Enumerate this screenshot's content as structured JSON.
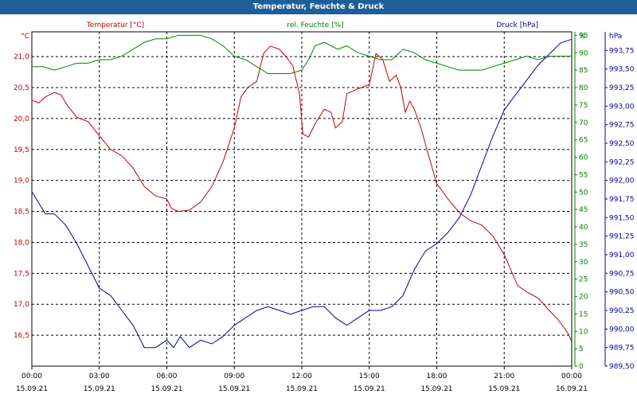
{
  "window_title": "Temperatur, Feuchte & Druck",
  "colors": {
    "titlebar": "#1f5f99",
    "temperature": "#c00000",
    "humidity": "#008000",
    "pressure": "#0000a0"
  },
  "chart_data": {
    "type": "line",
    "title": "Temperatur, Feuchte & Druck",
    "grid": true,
    "x_ticks": [
      {
        "time": "00:00",
        "date": "15.09.21"
      },
      {
        "time": "03:00",
        "date": "15.09.21"
      },
      {
        "time": "06:00",
        "date": "15.09.21"
      },
      {
        "time": "09:00",
        "date": "15.09.21"
      },
      {
        "time": "12:00",
        "date": "15.09.21"
      },
      {
        "time": "15:00",
        "date": "15.09.21"
      },
      {
        "time": "18:00",
        "date": "15.09.21"
      },
      {
        "time": "21:00",
        "date": "15.09.21"
      },
      {
        "time": "00:00",
        "date": "16.09.21"
      }
    ],
    "x_range_hours": [
      0,
      24
    ],
    "axes": {
      "temperature": {
        "unit_label": "°C",
        "range": [
          16.0,
          21.4
        ],
        "ticks": [
          "21,0",
          "20,5",
          "20,0",
          "19,5",
          "19,0",
          "18,5",
          "18,0",
          "17,5",
          "17,0",
          "16,5"
        ],
        "tick_values": [
          21.0,
          20.5,
          20.0,
          19.5,
          19.0,
          18.5,
          18.0,
          17.5,
          17.0,
          16.5
        ]
      },
      "humidity": {
        "unit_label": "%",
        "range": [
          0,
          96
        ],
        "ticks": [
          "95",
          "90",
          "85",
          "80",
          "75",
          "70",
          "65",
          "60",
          "55",
          "50",
          "45",
          "40",
          "35",
          "30",
          "25",
          "20",
          "15",
          "10",
          "5",
          "0"
        ],
        "tick_values": [
          95,
          90,
          85,
          80,
          75,
          70,
          65,
          60,
          55,
          50,
          45,
          40,
          35,
          30,
          25,
          20,
          15,
          10,
          5,
          0
        ]
      },
      "pressure": {
        "unit_label": "hPa",
        "range": [
          989.5,
          994.0
        ],
        "ticks": [
          "993,75",
          "993,50",
          "993,25",
          "993,00",
          "992,75",
          "992,50",
          "992,25",
          "992,00",
          "991,75",
          "991,50",
          "991,25",
          "991,00",
          "990,75",
          "990,50",
          "990,25",
          "990,00",
          "989,75",
          "989,50"
        ],
        "tick_values": [
          993.75,
          993.5,
          993.25,
          993.0,
          992.75,
          992.5,
          992.25,
          992.0,
          991.75,
          991.5,
          991.25,
          991.0,
          990.75,
          990.5,
          990.25,
          990.0,
          989.75,
          989.5
        ]
      }
    },
    "series": [
      {
        "name": "Temperatur [°C]",
        "axis": "temperature",
        "points": [
          [
            0,
            20.3
          ],
          [
            0.3,
            20.25
          ],
          [
            0.6,
            20.35
          ],
          [
            1.0,
            20.42
          ],
          [
            1.3,
            20.38
          ],
          [
            1.6,
            20.2
          ],
          [
            2.0,
            20.02
          ],
          [
            2.5,
            19.95
          ],
          [
            3.0,
            19.72
          ],
          [
            3.5,
            19.5
          ],
          [
            4.0,
            19.4
          ],
          [
            4.5,
            19.2
          ],
          [
            5.0,
            18.9
          ],
          [
            5.5,
            18.75
          ],
          [
            6.0,
            18.7
          ],
          [
            6.2,
            18.55
          ],
          [
            6.5,
            18.5
          ],
          [
            7.0,
            18.52
          ],
          [
            7.5,
            18.65
          ],
          [
            8.0,
            18.9
          ],
          [
            8.5,
            19.3
          ],
          [
            9.0,
            19.85
          ],
          [
            9.3,
            20.35
          ],
          [
            9.6,
            20.5
          ],
          [
            10.0,
            20.6
          ],
          [
            10.3,
            21.05
          ],
          [
            10.6,
            21.17
          ],
          [
            11.0,
            21.12
          ],
          [
            11.3,
            21.0
          ],
          [
            11.6,
            20.85
          ],
          [
            11.9,
            20.4
          ],
          [
            12.05,
            19.75
          ],
          [
            12.3,
            19.7
          ],
          [
            12.6,
            19.92
          ],
          [
            13.0,
            20.15
          ],
          [
            13.3,
            20.1
          ],
          [
            13.5,
            19.85
          ],
          [
            13.8,
            19.95
          ],
          [
            14.0,
            20.4
          ],
          [
            14.5,
            20.48
          ],
          [
            14.8,
            20.52
          ],
          [
            15.0,
            20.55
          ],
          [
            15.3,
            21.05
          ],
          [
            15.6,
            20.95
          ],
          [
            15.9,
            20.6
          ],
          [
            16.2,
            20.7
          ],
          [
            16.4,
            20.5
          ],
          [
            16.6,
            20.1
          ],
          [
            16.8,
            20.28
          ],
          [
            17.0,
            20.15
          ],
          [
            17.3,
            19.85
          ],
          [
            17.6,
            19.45
          ],
          [
            18.0,
            18.95
          ],
          [
            18.5,
            18.7
          ],
          [
            19.0,
            18.48
          ],
          [
            19.5,
            18.35
          ],
          [
            20.0,
            18.28
          ],
          [
            20.5,
            18.1
          ],
          [
            21.0,
            17.8
          ],
          [
            21.3,
            17.55
          ],
          [
            21.6,
            17.3
          ],
          [
            22.0,
            17.2
          ],
          [
            22.5,
            17.1
          ],
          [
            23.0,
            16.9
          ],
          [
            23.4,
            16.75
          ],
          [
            23.8,
            16.55
          ],
          [
            24.0,
            16.4
          ]
        ]
      },
      {
        "name": "rel. Feuchte [%]",
        "axis": "humidity",
        "points": [
          [
            0,
            86
          ],
          [
            0.5,
            86
          ],
          [
            1.0,
            85
          ],
          [
            1.5,
            86
          ],
          [
            2.0,
            87
          ],
          [
            2.5,
            87
          ],
          [
            3.0,
            88
          ],
          [
            3.5,
            88
          ],
          [
            4.0,
            89
          ],
          [
            4.5,
            91
          ],
          [
            5.0,
            93
          ],
          [
            5.5,
            94
          ],
          [
            6.0,
            94
          ],
          [
            6.5,
            95
          ],
          [
            7.0,
            95
          ],
          [
            7.5,
            95
          ],
          [
            8.0,
            94
          ],
          [
            8.5,
            92
          ],
          [
            9.0,
            89
          ],
          [
            9.5,
            88
          ],
          [
            10.0,
            86
          ],
          [
            10.5,
            84
          ],
          [
            11.0,
            84
          ],
          [
            11.5,
            84
          ],
          [
            12.0,
            85
          ],
          [
            12.3,
            88
          ],
          [
            12.6,
            92
          ],
          [
            13.0,
            93
          ],
          [
            13.3,
            92
          ],
          [
            13.6,
            91
          ],
          [
            14.0,
            92
          ],
          [
            14.5,
            90
          ],
          [
            15.0,
            89
          ],
          [
            15.5,
            88
          ],
          [
            16.0,
            88
          ],
          [
            16.5,
            91
          ],
          [
            17.0,
            90
          ],
          [
            17.5,
            88
          ],
          [
            18.0,
            87
          ],
          [
            18.5,
            86
          ],
          [
            19.0,
            85
          ],
          [
            19.5,
            85
          ],
          [
            20.0,
            85
          ],
          [
            20.5,
            86
          ],
          [
            21.0,
            87
          ],
          [
            21.5,
            88
          ],
          [
            22.0,
            89
          ],
          [
            22.5,
            88
          ],
          [
            23.0,
            89
          ],
          [
            23.5,
            89
          ],
          [
            24.0,
            89
          ]
        ]
      },
      {
        "name": "Druck [hPa]",
        "axis": "pressure",
        "points": [
          [
            0,
            991.85
          ],
          [
            0.3,
            991.7
          ],
          [
            0.6,
            991.55
          ],
          [
            1.0,
            991.55
          ],
          [
            1.5,
            991.4
          ],
          [
            2.0,
            991.15
          ],
          [
            2.5,
            990.85
          ],
          [
            3.0,
            990.55
          ],
          [
            3.5,
            990.45
          ],
          [
            4.0,
            990.25
          ],
          [
            4.5,
            990.05
          ],
          [
            5.0,
            989.75
          ],
          [
            5.5,
            989.75
          ],
          [
            6.0,
            989.85
          ],
          [
            6.3,
            989.75
          ],
          [
            6.6,
            989.9
          ],
          [
            7.0,
            989.75
          ],
          [
            7.5,
            989.85
          ],
          [
            8.0,
            989.8
          ],
          [
            8.5,
            989.9
          ],
          [
            9.0,
            990.05
          ],
          [
            9.5,
            990.15
          ],
          [
            10.0,
            990.25
          ],
          [
            10.5,
            990.3
          ],
          [
            11.0,
            990.25
          ],
          [
            11.5,
            990.2
          ],
          [
            12.0,
            990.25
          ],
          [
            12.5,
            990.3
          ],
          [
            13.0,
            990.3
          ],
          [
            13.5,
            990.15
          ],
          [
            14.0,
            990.05
          ],
          [
            14.5,
            990.15
          ],
          [
            15.0,
            990.25
          ],
          [
            15.5,
            990.25
          ],
          [
            16.0,
            990.3
          ],
          [
            16.5,
            990.45
          ],
          [
            17.0,
            990.8
          ],
          [
            17.5,
            991.05
          ],
          [
            18.0,
            991.15
          ],
          [
            18.5,
            991.3
          ],
          [
            19.0,
            991.5
          ],
          [
            19.5,
            991.8
          ],
          [
            20.0,
            992.2
          ],
          [
            20.5,
            992.6
          ],
          [
            21.0,
            992.95
          ],
          [
            21.5,
            993.15
          ],
          [
            22.0,
            993.35
          ],
          [
            22.5,
            993.55
          ],
          [
            23.0,
            993.7
          ],
          [
            23.5,
            993.85
          ],
          [
            24.0,
            993.9
          ]
        ]
      }
    ]
  }
}
